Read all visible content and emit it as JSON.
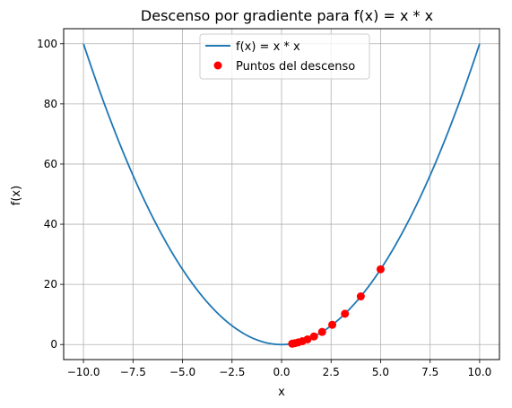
{
  "chart_data": {
    "type": "line",
    "title": "Descenso por gradiente para f(x) = x * x",
    "xlabel": "x",
    "ylabel": "f(x)",
    "xlim": [
      -11,
      11
    ],
    "ylim": [
      -5,
      105
    ],
    "x_ticks": [
      -10.0,
      -7.5,
      -5.0,
      -2.5,
      0.0,
      2.5,
      5.0,
      7.5,
      10.0
    ],
    "x_tick_labels": [
      "−10.0",
      "−7.5",
      "−5.0",
      "−2.5",
      "0.0",
      "2.5",
      "5.0",
      "7.5",
      "10.0"
    ],
    "y_ticks": [
      0,
      20,
      40,
      60,
      80,
      100
    ],
    "y_tick_labels": [
      "0",
      "20",
      "40",
      "60",
      "80",
      "100"
    ],
    "grid": true,
    "legend_position": "top-center",
    "series": [
      {
        "name": "f(x) = x * x",
        "kind": "line",
        "color": "#1f77b4",
        "function": "x^2",
        "x_range": [
          -10,
          10
        ]
      },
      {
        "name": "Puntos del descenso",
        "kind": "scatter",
        "color": "#ff0000",
        "points": [
          [
            5.0,
            25.0
          ],
          [
            4.0,
            16.0
          ],
          [
            3.2,
            10.24
          ],
          [
            2.56,
            6.5536
          ],
          [
            2.048,
            4.194304
          ],
          [
            1.6384,
            2.68435456
          ],
          [
            1.31072,
            1.7179869184
          ],
          [
            1.048576,
            1.099511627776
          ],
          [
            0.8388608,
            0.70368744177664
          ],
          [
            0.67108864,
            0.4503599627370496
          ],
          [
            0.536870912,
            0.28823037615171176
          ]
        ]
      }
    ]
  }
}
